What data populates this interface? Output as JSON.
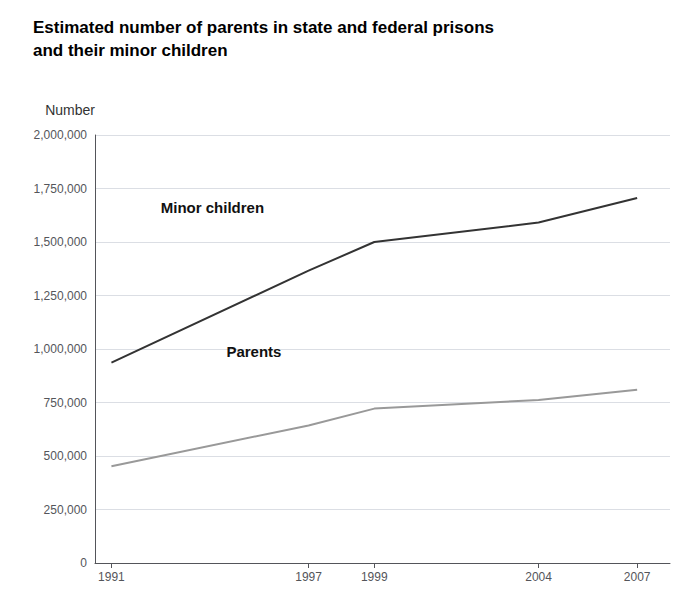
{
  "chart_data": {
    "type": "line",
    "title": "Estimated number of parents in state and federal prisons",
    "subtitle": "and their minor children",
    "ylabel": "Number",
    "x": [
      1991,
      1997,
      1999,
      2004,
      2007
    ],
    "series": [
      {
        "name": "Minor children",
        "color": "#333333",
        "values": [
          936000,
          1366000,
          1500000,
          1591000,
          1706000
        ]
      },
      {
        "name": "Parents",
        "color": "#999999",
        "values": [
          452500,
          642500,
          721500,
          762000,
          809800
        ]
      }
    ],
    "annotations": [
      {
        "text": "Minor children",
        "x": 1992.5,
        "y": 1660000
      },
      {
        "text": "Parents",
        "x": 1994.5,
        "y": 990000
      }
    ],
    "xlim": [
      1990.5,
      2008
    ],
    "xticks": [
      1991,
      1997,
      1999,
      2004,
      2007
    ],
    "ylim": [
      0,
      2000000
    ],
    "yticks": [
      0,
      {
        "value": 250000,
        "label": "250,000"
      },
      {
        "value": 500000,
        "label": "500,000"
      },
      {
        "value": 750000,
        "label": "750,000"
      },
      {
        "value": 1000000,
        "label": "1,000,000"
      },
      {
        "value": 1250000,
        "label": "1,250,000"
      },
      {
        "value": 1500000,
        "label": "1,500,000"
      },
      {
        "value": 1750000,
        "label": "1,750,000"
      },
      {
        "value": 2000000,
        "label": "2,000,000"
      }
    ],
    "grid": true
  }
}
